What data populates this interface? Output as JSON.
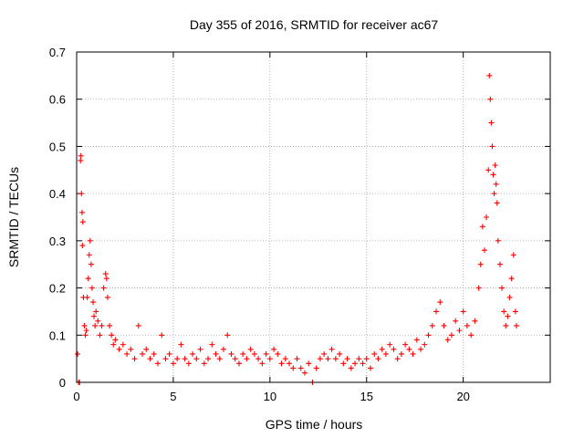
{
  "chart_data": {
    "type": "scatter",
    "title": "Day 355 of 2016, SRMTID for receiver ac67",
    "xlabel": "GPS time / hours",
    "ylabel": "SRMTID / TECUs",
    "xlim": [
      0,
      24.5
    ],
    "ylim": [
      0,
      0.7
    ],
    "xticks": [
      0,
      5,
      10,
      15,
      20
    ],
    "yticks": [
      0,
      0.1,
      0.2,
      0.3,
      0.4,
      0.5,
      0.6,
      0.7
    ],
    "xtick_labels": [
      "0",
      "5",
      "10",
      "15",
      "20"
    ],
    "ytick_labels": [
      "0",
      "0.1",
      "0.2",
      "0.3",
      "0.4",
      "0.5",
      "0.6",
      "0.7"
    ],
    "grid": true,
    "marker": "+",
    "series": [
      {
        "name": "SRMTID",
        "color": "#ff0000",
        "points": [
          [
            0.05,
            0.06
          ],
          [
            0.1,
            0.0
          ],
          [
            0.15,
            0.0
          ],
          [
            0.2,
            0.47
          ],
          [
            0.22,
            0.48
          ],
          [
            0.25,
            0.4
          ],
          [
            0.28,
            0.36
          ],
          [
            0.3,
            0.29
          ],
          [
            0.32,
            0.34
          ],
          [
            0.35,
            0.18
          ],
          [
            0.4,
            0.12
          ],
          [
            0.45,
            0.1
          ],
          [
            0.5,
            0.11
          ],
          [
            0.55,
            0.18
          ],
          [
            0.6,
            0.22
          ],
          [
            0.65,
            0.27
          ],
          [
            0.7,
            0.3
          ],
          [
            0.75,
            0.25
          ],
          [
            0.8,
            0.2
          ],
          [
            0.85,
            0.17
          ],
          [
            0.9,
            0.14
          ],
          [
            0.95,
            0.12
          ],
          [
            1.0,
            0.15
          ],
          [
            1.1,
            0.13
          ],
          [
            1.2,
            0.1
          ],
          [
            1.3,
            0.12
          ],
          [
            1.4,
            0.2
          ],
          [
            1.5,
            0.23
          ],
          [
            1.55,
            0.22
          ],
          [
            1.6,
            0.18
          ],
          [
            1.7,
            0.12
          ],
          [
            1.8,
            0.1
          ],
          [
            1.9,
            0.08
          ],
          [
            2.0,
            0.09
          ],
          [
            2.2,
            0.07
          ],
          [
            2.4,
            0.08
          ],
          [
            2.6,
            0.06
          ],
          [
            2.8,
            0.07
          ],
          [
            3.0,
            0.05
          ],
          [
            3.2,
            0.12
          ],
          [
            3.4,
            0.06
          ],
          [
            3.6,
            0.07
          ],
          [
            3.8,
            0.05
          ],
          [
            4.0,
            0.06
          ],
          [
            4.2,
            0.04
          ],
          [
            4.4,
            0.1
          ],
          [
            4.6,
            0.05
          ],
          [
            4.8,
            0.06
          ],
          [
            5.0,
            0.04
          ],
          [
            5.2,
            0.05
          ],
          [
            5.4,
            0.08
          ],
          [
            5.6,
            0.05
          ],
          [
            5.8,
            0.04
          ],
          [
            6.0,
            0.06
          ],
          [
            6.2,
            0.05
          ],
          [
            6.4,
            0.07
          ],
          [
            6.6,
            0.04
          ],
          [
            6.8,
            0.05
          ],
          [
            7.0,
            0.08
          ],
          [
            7.2,
            0.06
          ],
          [
            7.4,
            0.05
          ],
          [
            7.6,
            0.07
          ],
          [
            7.8,
            0.1
          ],
          [
            8.0,
            0.06
          ],
          [
            8.2,
            0.05
          ],
          [
            8.4,
            0.04
          ],
          [
            8.6,
            0.06
          ],
          [
            8.8,
            0.05
          ],
          [
            9.0,
            0.07
          ],
          [
            9.2,
            0.06
          ],
          [
            9.4,
            0.05
          ],
          [
            9.6,
            0.04
          ],
          [
            9.8,
            0.06
          ],
          [
            10.0,
            0.05
          ],
          [
            10.2,
            0.07
          ],
          [
            10.4,
            0.06
          ],
          [
            10.6,
            0.04
          ],
          [
            10.8,
            0.05
          ],
          [
            11.0,
            0.04
          ],
          [
            11.2,
            0.03
          ],
          [
            11.4,
            0.05
          ],
          [
            11.6,
            0.03
          ],
          [
            11.8,
            0.02
          ],
          [
            12.0,
            0.04
          ],
          [
            12.2,
            0.0
          ],
          [
            12.4,
            0.03
          ],
          [
            12.6,
            0.05
          ],
          [
            12.8,
            0.06
          ],
          [
            13.0,
            0.05
          ],
          [
            13.2,
            0.07
          ],
          [
            13.4,
            0.05
          ],
          [
            13.6,
            0.06
          ],
          [
            13.8,
            0.04
          ],
          [
            14.0,
            0.05
          ],
          [
            14.2,
            0.03
          ],
          [
            14.4,
            0.04
          ],
          [
            14.6,
            0.05
          ],
          [
            14.8,
            0.04
          ],
          [
            15.0,
            0.05
          ],
          [
            15.2,
            0.03
          ],
          [
            15.4,
            0.06
          ],
          [
            15.6,
            0.05
          ],
          [
            15.8,
            0.07
          ],
          [
            16.0,
            0.06
          ],
          [
            16.2,
            0.08
          ],
          [
            16.4,
            0.07
          ],
          [
            16.6,
            0.05
          ],
          [
            16.8,
            0.06
          ],
          [
            17.0,
            0.08
          ],
          [
            17.2,
            0.07
          ],
          [
            17.4,
            0.06
          ],
          [
            17.6,
            0.09
          ],
          [
            17.8,
            0.07
          ],
          [
            18.0,
            0.08
          ],
          [
            18.2,
            0.1
          ],
          [
            18.4,
            0.12
          ],
          [
            18.6,
            0.15
          ],
          [
            18.8,
            0.17
          ],
          [
            19.0,
            0.12
          ],
          [
            19.2,
            0.09
          ],
          [
            19.4,
            0.1
          ],
          [
            19.6,
            0.13
          ],
          [
            19.8,
            0.11
          ],
          [
            20.0,
            0.15
          ],
          [
            20.2,
            0.12
          ],
          [
            20.4,
            0.1
          ],
          [
            20.6,
            0.13
          ],
          [
            20.8,
            0.2
          ],
          [
            20.9,
            0.25
          ],
          [
            21.0,
            0.33
          ],
          [
            21.1,
            0.28
          ],
          [
            21.2,
            0.35
          ],
          [
            21.3,
            0.45
          ],
          [
            21.35,
            0.65
          ],
          [
            21.4,
            0.6
          ],
          [
            21.45,
            0.55
          ],
          [
            21.5,
            0.5
          ],
          [
            21.55,
            0.44
          ],
          [
            21.6,
            0.4
          ],
          [
            21.65,
            0.46
          ],
          [
            21.7,
            0.42
          ],
          [
            21.75,
            0.38
          ],
          [
            21.8,
            0.3
          ],
          [
            21.9,
            0.25
          ],
          [
            22.0,
            0.2
          ],
          [
            22.1,
            0.15
          ],
          [
            22.2,
            0.12
          ],
          [
            22.3,
            0.14
          ],
          [
            22.4,
            0.18
          ],
          [
            22.5,
            0.22
          ],
          [
            22.6,
            0.27
          ],
          [
            22.7,
            0.15
          ],
          [
            22.75,
            0.12
          ]
        ]
      }
    ]
  }
}
